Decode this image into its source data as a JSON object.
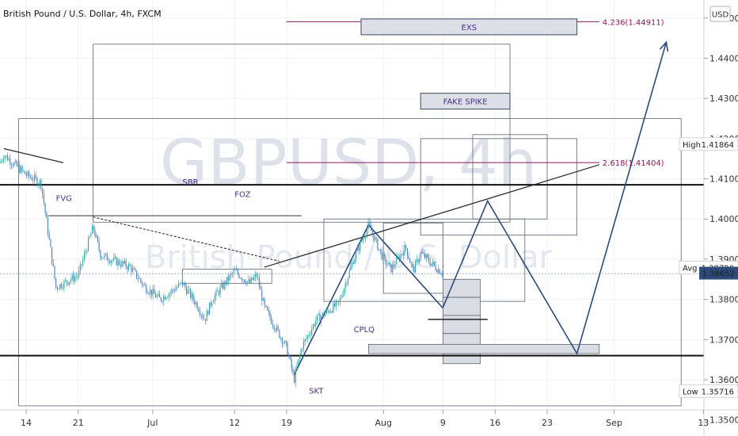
{
  "header": {
    "title": "British Pound / U.S. Dollar, 4h, FXCM"
  },
  "watermark": {
    "symbol": "GBPUSD, 4h",
    "name": "British Pound / U.S. Dollar"
  },
  "colors": {
    "up": "#26a69a",
    "down": "#4a7dbf",
    "drawing": "#2c4a7a",
    "fib": "#8b1a5c",
    "label": "#4b2f8a",
    "grid": "#eef1f5",
    "current": "#2c4a7a"
  },
  "chart_data": {
    "type": "candlestick",
    "title": "British Pound / U.S. Dollar, 4h, FXCM",
    "currency_label": "USD",
    "y_range": [
      1.3525,
      1.4545
    ],
    "y_ticks": [
      "1.45000",
      "1.44000",
      "1.43000",
      "1.42000",
      "1.41000",
      "1.40000",
      "1.39000",
      "1.38000",
      "1.37000",
      "1.36000",
      "1.35000"
    ],
    "x_ticks": [
      "14",
      "21",
      "Jul",
      "12",
      "19",
      "Aug",
      "9",
      "16",
      "23",
      "Sep",
      "13"
    ],
    "x_tick_dates": [
      "2021-06-14",
      "2021-06-21",
      "2021-07-01",
      "2021-07-12",
      "2021-07-19",
      "2021-08-01",
      "2021-08-09",
      "2021-08-16",
      "2021-08-23",
      "2021-09-01",
      "2021-09-13"
    ],
    "price_path": [
      [
        "2021-06-10",
        1.412
      ],
      [
        "2021-06-11",
        1.416
      ],
      [
        "2021-06-14",
        1.411
      ],
      [
        "2021-06-16",
        1.409
      ],
      [
        "2021-06-17",
        1.396
      ],
      [
        "2021-06-18",
        1.383
      ],
      [
        "2021-06-21",
        1.386
      ],
      [
        "2021-06-23",
        1.398
      ],
      [
        "2021-06-24",
        1.391
      ],
      [
        "2021-06-28",
        1.388
      ],
      [
        "2021-06-30",
        1.383
      ],
      [
        "2021-07-02",
        1.38
      ],
      [
        "2021-07-05",
        1.384
      ],
      [
        "2021-07-07",
        1.3785
      ],
      [
        "2021-07-08",
        1.375
      ],
      [
        "2021-07-09",
        1.38
      ],
      [
        "2021-07-12",
        1.387
      ],
      [
        "2021-07-14",
        1.384
      ],
      [
        "2021-07-15",
        1.386
      ],
      [
        "2021-07-16",
        1.378
      ],
      [
        "2021-07-19",
        1.368
      ],
      [
        "2021-07-20",
        1.36
      ],
      [
        "2021-07-21",
        1.368
      ],
      [
        "2021-07-23",
        1.375
      ],
      [
        "2021-07-26",
        1.379
      ],
      [
        "2021-07-28",
        1.39
      ],
      [
        "2021-07-30",
        1.3985
      ],
      [
        "2021-08-01",
        1.39
      ],
      [
        "2021-08-02",
        1.3875
      ],
      [
        "2021-08-04",
        1.393
      ],
      [
        "2021-08-05",
        1.387
      ],
      [
        "2021-08-06",
        1.3915
      ],
      [
        "2021-08-08",
        1.388
      ],
      [
        "2021-08-09",
        1.3865
      ]
    ],
    "current_price": "1.38652",
    "price_badges": [
      {
        "label": "High",
        "value": "1.41864",
        "y": 1.41864
      },
      {
        "label": "Avg",
        "value": "1.38790",
        "y": 1.3879
      },
      {
        "label": "Low",
        "value": "1.35716",
        "y": 1.35716
      }
    ],
    "horizontal_levels": [
      1.4085,
      1.366
    ],
    "fib_levels": [
      {
        "label": "4.236(1.44911)",
        "value": 1.44911
      },
      {
        "label": "2.618(1.41404)",
        "value": 1.41404
      }
    ],
    "zones": [
      {
        "label": "EXS",
        "from": "2021-07-29",
        "to": "2021-08-27",
        "top": 1.449,
        "bottom": 1.447
      },
      {
        "label": "FAKE SPIKE",
        "from": "2021-08-06",
        "to": "2021-08-18",
        "top": 1.4305,
        "bottom": 1.428
      }
    ],
    "annotations": [
      "FVG",
      "SBR",
      "FOZ",
      "CPLQ",
      "SKT"
    ],
    "projection_path": [
      [
        "2021-08-09",
        1.378
      ],
      [
        "2021-08-15",
        1.4045
      ],
      [
        "2021-08-27",
        1.3665
      ],
      [
        "2021-09-08",
        1.444
      ]
    ]
  }
}
